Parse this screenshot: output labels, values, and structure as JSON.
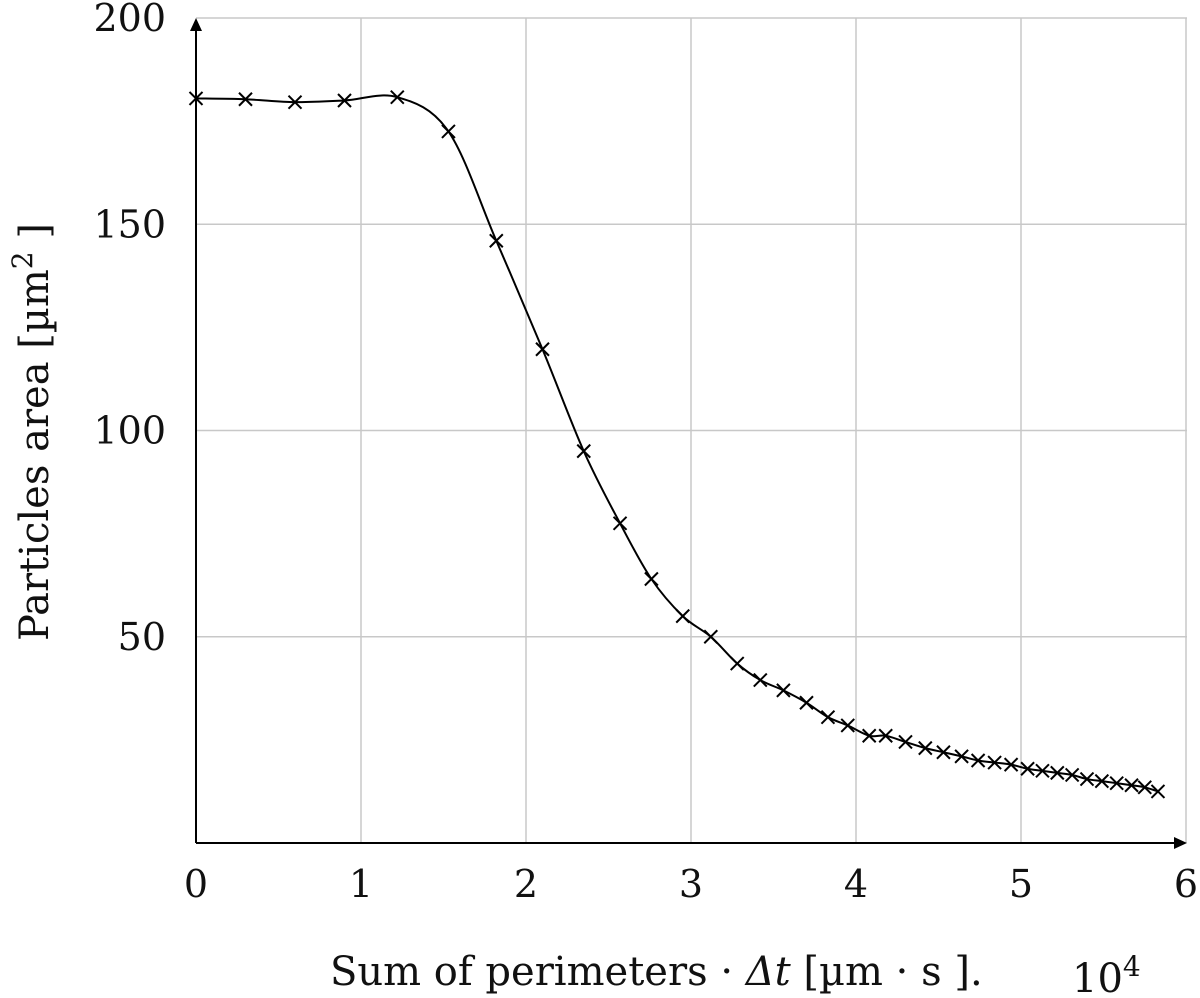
{
  "chart_data": {
    "type": "line",
    "xlabel": "Sum of perimeters · Δt [µm · s ]",
    "xlabel_parts": {
      "main": "Sum of perimeters · ",
      "delta_t": "Δt",
      "units": " [µm · s ]"
    },
    "x_scale_label": {
      "dot": ".",
      "base": "10",
      "exponent": "4"
    },
    "ylabel": "Particles area [µm² ]",
    "ylabel_parts": {
      "main": "Particles area [µm",
      "exponent": "2",
      "close": " ]"
    },
    "xlim": [
      0,
      6
    ],
    "ylim": [
      0,
      200
    ],
    "x_ticks": [
      "0",
      "1",
      "2",
      "3",
      "4",
      "5",
      "6"
    ],
    "y_ticks": [
      "50",
      "100",
      "150",
      "200"
    ],
    "grid": true,
    "marker": "x",
    "series": [
      {
        "x": [
          0,
          0.3,
          0.6,
          0.9,
          1.22,
          1.53,
          1.82,
          2.1,
          2.35,
          2.57,
          2.76,
          2.95,
          3.12,
          3.28,
          3.42,
          3.56,
          3.7,
          3.83,
          3.95,
          4.08,
          4.18,
          4.3,
          4.42,
          4.53,
          4.64,
          4.74,
          4.84,
          4.94,
          5.04,
          5.13,
          5.22,
          5.31,
          5.4,
          5.49,
          5.58,
          5.67,
          5.75,
          5.83
        ],
        "y": [
          180.5,
          180.3,
          179.6,
          180.0,
          180.8,
          172.5,
          146.0,
          119.7,
          95.0,
          77.5,
          64.0,
          55.0,
          50.0,
          43.5,
          39.5,
          37.0,
          34.0,
          30.5,
          28.5,
          26.0,
          26.0,
          24.5,
          23.0,
          22.0,
          21.0,
          20.0,
          19.5,
          19.0,
          18.0,
          17.5,
          17.0,
          16.5,
          15.5,
          15.0,
          14.5,
          14.0,
          13.5,
          12.5
        ]
      }
    ]
  }
}
